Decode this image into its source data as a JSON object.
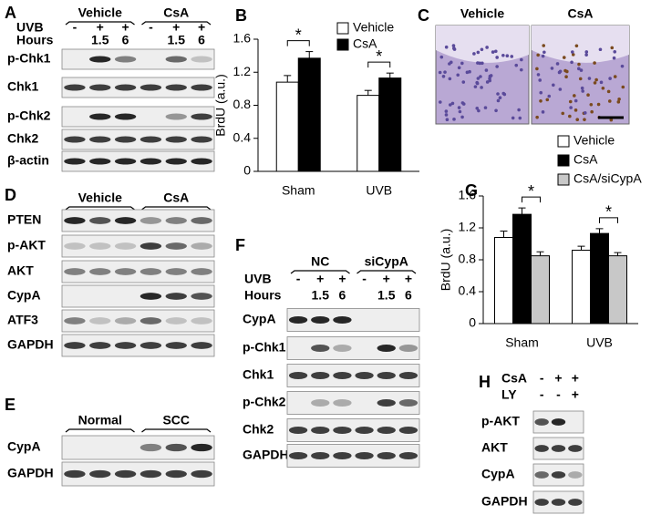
{
  "chart_data": [
    {
      "type": "bar",
      "label": "B",
      "y_label": "BrdU (a.u.)",
      "categories": [
        "Sham",
        "UVB"
      ],
      "series": [
        {
          "name": "Vehicle",
          "color": "#ffffff",
          "values": [
            1.08,
            0.92
          ],
          "errors": [
            0.08,
            0.06
          ]
        },
        {
          "name": "CsA",
          "color": "#000000",
          "values": [
            1.37,
            1.13
          ],
          "errors": [
            0.08,
            0.06
          ]
        }
      ],
      "ylim": [
        0,
        1.6
      ],
      "yticks": [
        0,
        0.4,
        0.8,
        1.2,
        1.6
      ],
      "annotations": [
        "*",
        "*"
      ],
      "legend": "upper right"
    },
    {
      "type": "bar",
      "label": "G",
      "y_label": "BrdU (a.u.)",
      "categories": [
        "Sham",
        "UVB"
      ],
      "series": [
        {
          "name": "Vehicle",
          "color": "#ffffff",
          "values": [
            1.08,
            0.92
          ],
          "errors": [
            0.08,
            0.05
          ]
        },
        {
          "name": "CsA",
          "color": "#000000",
          "values": [
            1.37,
            1.13
          ],
          "errors": [
            0.08,
            0.06
          ]
        },
        {
          "name": "CsA/siCypA",
          "color": "#c8c8c8",
          "values": [
            0.85,
            0.85
          ],
          "errors": [
            0.05,
            0.04
          ]
        }
      ],
      "ylim": [
        0,
        1.6
      ],
      "yticks": [
        0,
        0.4,
        0.8,
        1.2,
        1.6
      ],
      "annotations": [
        "*",
        "*"
      ],
      "legend": "above"
    }
  ],
  "panel_c": {
    "label": "C",
    "images": [
      "Vehicle",
      "CsA"
    ]
  },
  "blots": {
    "A": {
      "label": "A",
      "groups": [
        "Vehicle",
        "CsA"
      ],
      "conditions": [
        {
          "name": "UVB",
          "marks": [
            "-",
            "+",
            "+",
            "-",
            "+",
            "+"
          ]
        },
        {
          "name": "Hours",
          "marks": [
            null,
            "1.5",
            "6",
            null,
            "1.5",
            "6"
          ]
        }
      ],
      "rows": [
        "p-Chk1",
        "Chk1",
        "p-Chk2",
        "Chk2",
        "β-actin"
      ]
    },
    "D": {
      "label": "D",
      "groups": [
        "Vehicle",
        "CsA"
      ],
      "conditions": [],
      "rows": [
        "PTEN",
        "p-AKT",
        "AKT",
        "CypA",
        "ATF3",
        "GAPDH"
      ]
    },
    "E": {
      "label": "E",
      "groups": [
        "Normal",
        "SCC"
      ],
      "conditions": [],
      "rows": [
        "CypA",
        "GAPDH"
      ]
    },
    "F": {
      "label": "F",
      "groups": [
        "NC",
        "siCypA"
      ],
      "conditions": [
        {
          "name": "UVB",
          "marks": [
            "-",
            "+",
            "+",
            "-",
            "+",
            "+"
          ]
        },
        {
          "name": "Hours",
          "marks": [
            null,
            "1.5",
            "6",
            null,
            "1.5",
            "6"
          ]
        }
      ],
      "rows": [
        "CypA",
        "p-Chk1",
        "Chk1",
        "p-Chk2",
        "Chk2",
        "GAPDH"
      ]
    },
    "H": {
      "label": "H",
      "groups": [],
      "conditions": [
        {
          "name": "CsA",
          "marks": [
            "-",
            "+",
            "+"
          ]
        },
        {
          "name": "LY",
          "marks": [
            "-",
            "-",
            "+"
          ]
        }
      ],
      "rows": [
        "p-AKT",
        "AKT",
        "CypA",
        "GAPDH"
      ]
    }
  }
}
